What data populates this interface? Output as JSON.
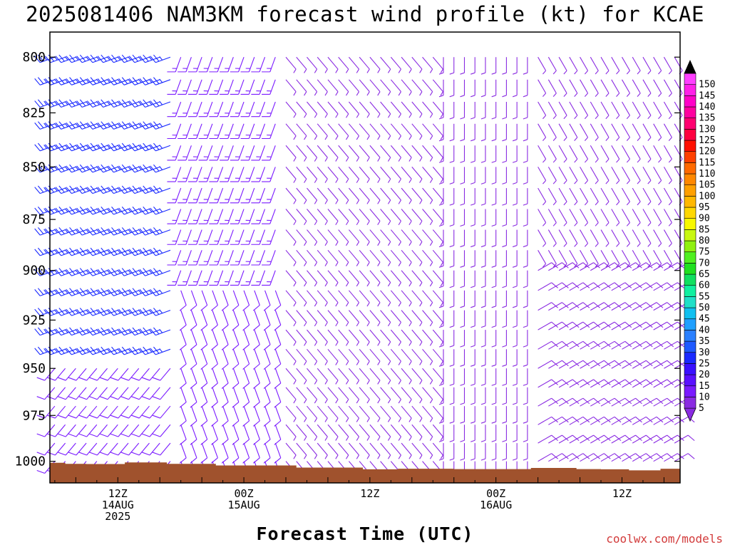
{
  "chart_data": {
    "type": "wind-barb-time-height",
    "title": "2025081406 NAM3KM forecast wind profile (kt) for KCAE",
    "xlabel": "Forecast Time (UTC)",
    "ylabel": "",
    "credit": "coolwx.com/models",
    "y_axis": {
      "ticks": [
        "800",
        "825",
        "850",
        "875",
        "900",
        "925",
        "950",
        "975",
        "1000"
      ],
      "range_hpa": [
        1012,
        789
      ]
    },
    "x_axis": {
      "ticks": [
        {
          "hour": 12,
          "label": "12Z",
          "date": "14AUG",
          "year": "2025"
        },
        {
          "hour": 30,
          "label": "00Z",
          "date": "15AUG",
          "year": ""
        },
        {
          "hour": 48,
          "label": "12Z",
          "date": "",
          "year": ""
        },
        {
          "hour": 66,
          "label": "00Z",
          "date": "16AUG",
          "year": ""
        },
        {
          "hour": 84,
          "label": "12Z",
          "date": "",
          "year": ""
        }
      ],
      "range_fhr": [
        2.3,
        92.3
      ]
    },
    "colorbar": {
      "levels": [
        "5",
        "10",
        "15",
        "20",
        "25",
        "30",
        "35",
        "40",
        "45",
        "50",
        "55",
        "60",
        "65",
        "70",
        "75",
        "80",
        "85",
        "90",
        "95",
        "100",
        "105",
        "110",
        "115",
        "120",
        "125",
        "130",
        "135",
        "140",
        "145",
        "150"
      ],
      "colors": [
        "#8a2be2",
        "#7a1aff",
        "#5a10ff",
        "#3a10ff",
        "#1a2aff",
        "#1f5aff",
        "#2a80ff",
        "#20a0ff",
        "#10c0f0",
        "#20e0c8",
        "#10f0a0",
        "#10e060",
        "#20e020",
        "#50f020",
        "#90f010",
        "#c8f810",
        "#f8f800",
        "#ffd800",
        "#ffb800",
        "#ffa000",
        "#ff8800",
        "#ff6a00",
        "#ff4000",
        "#ff1000",
        "#ff0040",
        "#ff0070",
        "#ff00a0",
        "#ff00c8",
        "#ff20e8",
        "#ff40ff"
      ]
    },
    "terrain": {
      "color": "#a0522d",
      "surface_pressure_hpa": [
        {
          "fhr": 3,
          "p": 1000.8
        },
        {
          "fhr": 6,
          "p": 1001.4
        },
        {
          "fhr": 9,
          "p": 1001.5
        },
        {
          "fhr": 17,
          "p": 1000.6
        },
        {
          "fhr": 21,
          "p": 1001.4
        },
        {
          "fhr": 31,
          "p": 1002.3
        },
        {
          "fhr": 44,
          "p": 1003.5
        },
        {
          "fhr": 50,
          "p": 1004.4
        },
        {
          "fhr": 54,
          "p": 1004.1
        },
        {
          "fhr": 66,
          "p": 1004.3
        },
        {
          "fhr": 76,
          "p": 1003.7
        },
        {
          "fhr": 79,
          "p": 1004.3
        },
        {
          "fhr": 83,
          "p": 1004.4
        },
        {
          "fhr": 87,
          "p": 1005.0
        },
        {
          "fhr": 92,
          "p": 1004.1
        }
      ]
    },
    "wind_regimes": [
      {
        "fhr_from": 3,
        "fhr_to": 19,
        "p_from": 800,
        "p_to": 940,
        "dir_deg": 250,
        "speed_kt": 25
      },
      {
        "fhr_from": 3,
        "fhr_to": 19,
        "p_from": 940,
        "p_to": 1000,
        "dir_deg": 220,
        "speed_kt": 12
      },
      {
        "fhr_from": 21,
        "fhr_to": 34,
        "p_from": 800,
        "p_to": 900,
        "dir_deg": 200,
        "speed_kt": 13
      },
      {
        "fhr_from": 21,
        "fhr_to": 34,
        "p_from": 900,
        "p_to": 1000,
        "dir_deg": 160,
        "speed_kt": 10
      },
      {
        "fhr_from": 36,
        "fhr_to": 56,
        "p_from": 800,
        "p_to": 1000,
        "dir_deg": 140,
        "speed_kt": 7
      },
      {
        "fhr_from": 58,
        "fhr_to": 70,
        "p_from": 800,
        "p_to": 1000,
        "dir_deg": 180,
        "speed_kt": 6
      },
      {
        "fhr_from": 72,
        "fhr_to": 92,
        "p_from": 800,
        "p_to": 885,
        "dir_deg": 150,
        "speed_kt": 6
      },
      {
        "fhr_from": 72,
        "fhr_to": 92,
        "p_from": 885,
        "p_to": 1000,
        "dir_deg": 60,
        "speed_kt": 8
      }
    ],
    "grid": false,
    "legend": "right colorbar"
  }
}
